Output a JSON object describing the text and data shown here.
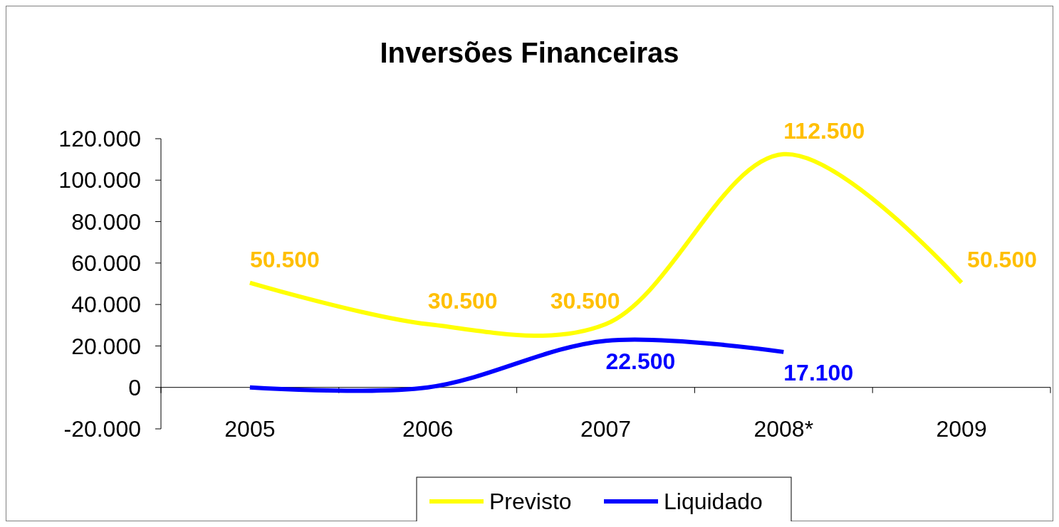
{
  "chart_data": {
    "type": "line",
    "title": "Inversões Financeiras",
    "categories": [
      "2005",
      "2006",
      "2007",
      "2008*",
      "2009"
    ],
    "series": [
      {
        "name": "Previsto",
        "color": "#ffff00",
        "values": [
          50500,
          30500,
          30500,
          112500,
          50500
        ],
        "value_labels": [
          "50.500",
          "30.500",
          "30.500",
          "112.500",
          "50.500"
        ]
      },
      {
        "name": "Liquidado",
        "color": "#0000ff",
        "values": [
          0,
          0,
          22500,
          17100,
          null
        ],
        "value_labels": [
          null,
          null,
          "22.500",
          "17.100",
          null
        ]
      }
    ],
    "ylim": [
      -20000,
      120000
    ],
    "yticks": [
      {
        "value": -20000,
        "label": "-20.000"
      },
      {
        "value": 0,
        "label": "0"
      },
      {
        "value": 20000,
        "label": "20.000"
      },
      {
        "value": 40000,
        "label": "40.000"
      },
      {
        "value": 60000,
        "label": "60.000"
      },
      {
        "value": 80000,
        "label": "80.000"
      },
      {
        "value": 100000,
        "label": "100.000"
      },
      {
        "value": 120000,
        "label": "120.000"
      }
    ],
    "grid": false,
    "legend": "bottom",
    "marker": "none",
    "line_style": "solid"
  }
}
